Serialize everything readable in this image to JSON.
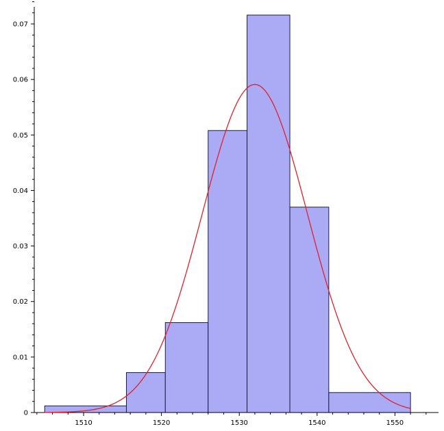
{
  "chart_data": {
    "type": "bar",
    "subtype": "histogram",
    "title": "",
    "xlabel": "",
    "ylabel": "",
    "xlim": [
      1500,
      1555
    ],
    "ylim": [
      0,
      0.0745
    ],
    "bars": [
      {
        "x0": 1505.0,
        "x1": 1515.5,
        "height": 0.0012
      },
      {
        "x0": 1515.5,
        "x1": 1520.5,
        "height": 0.0072
      },
      {
        "x0": 1520.5,
        "x1": 1526.0,
        "height": 0.0162
      },
      {
        "x0": 1526.0,
        "x1": 1531.0,
        "height": 0.0508
      },
      {
        "x0": 1531.0,
        "x1": 1536.5,
        "height": 0.0716
      },
      {
        "x0": 1536.5,
        "x1": 1541.5,
        "height": 0.037
      },
      {
        "x0": 1541.5,
        "x1": 1552.0,
        "height": 0.0036
      }
    ],
    "curve": {
      "kind": "normal-density",
      "mean": 1532,
      "sd": 6.75,
      "x_range": [
        1505,
        1552
      ]
    },
    "x_ticks": [
      1510,
      1520,
      1530,
      1540,
      1550
    ],
    "y_ticks": [
      "0",
      "0.01",
      "0.02",
      "0.03",
      "0.04",
      "0.05",
      "0.06",
      "0.07"
    ],
    "y_tick_values": [
      0,
      0.01,
      0.02,
      0.03,
      0.04,
      0.05,
      0.06,
      0.07
    ],
    "grid": false,
    "colors": {
      "bar_fill": "#aaaaf5",
      "bar_stroke": "#1a1a4a",
      "curve": "#e0202a",
      "axis": "#000000"
    }
  }
}
